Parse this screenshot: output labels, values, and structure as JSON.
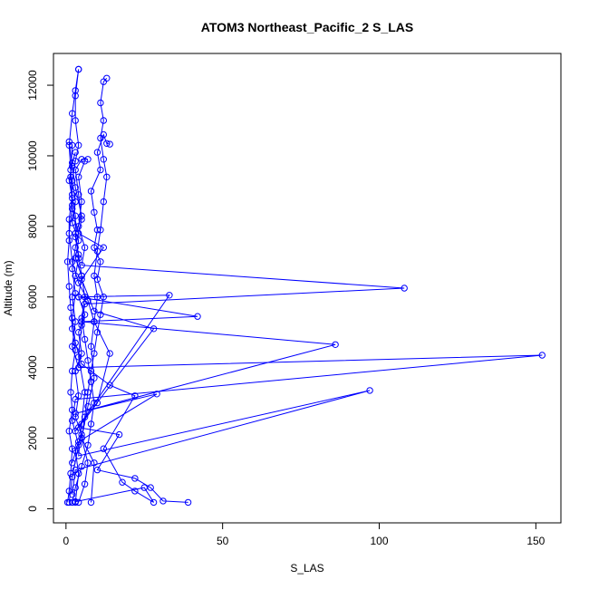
{
  "chart_data": {
    "type": "line",
    "title": "ATOM3 Northeast_Pacific_2 S_LAS",
    "xlabel": "S_LAS",
    "ylabel": "Altitude (m)",
    "xlim": [
      -4,
      158
    ],
    "ylim": [
      -400,
      12900
    ],
    "xticks": [
      0,
      50,
      100,
      150
    ],
    "yticks": [
      0,
      2000,
      4000,
      6000,
      8000,
      10000,
      12000
    ],
    "grid": false,
    "legend": "none",
    "color": "#0000ff",
    "series": [
      {
        "points": [
          [
            3,
            180
          ],
          [
            4,
            1000
          ],
          [
            3,
            1650
          ],
          [
            5,
            2100
          ],
          [
            3,
            2600
          ],
          [
            4,
            3200
          ],
          [
            3,
            3900
          ],
          [
            5,
            4400
          ],
          [
            4,
            5000
          ],
          [
            6,
            5500
          ],
          [
            4,
            6000
          ],
          [
            5,
            6600
          ],
          [
            3,
            7100
          ],
          [
            4,
            7600
          ],
          [
            2,
            8100
          ],
          [
            3,
            8700
          ],
          [
            2,
            9300
          ],
          [
            3,
            9850
          ],
          [
            4,
            10300
          ],
          [
            3,
            11000
          ],
          [
            3,
            11700
          ],
          [
            4,
            12450
          ]
        ]
      },
      {
        "points": [
          [
            0.5,
            180
          ],
          [
            1,
            500
          ],
          [
            1.5,
            1000
          ],
          [
            2,
            1700
          ],
          [
            1,
            2200
          ],
          [
            2,
            2800
          ],
          [
            1.5,
            3300
          ],
          [
            2,
            3900
          ],
          [
            3,
            4500
          ],
          [
            2,
            5100
          ],
          [
            1.5,
            5700
          ],
          [
            1,
            6300
          ],
          [
            0.5,
            7000
          ],
          [
            1,
            7600
          ],
          [
            1,
            8200
          ],
          [
            2,
            8900
          ],
          [
            1.5,
            9600
          ],
          [
            1,
            10300
          ],
          [
            2,
            11200
          ],
          [
            3,
            11850
          ],
          [
            4,
            12450
          ]
        ]
      },
      {
        "points": [
          [
            8,
            180
          ],
          [
            9,
            1300
          ],
          [
            5,
            2000
          ],
          [
            7,
            2900
          ],
          [
            9,
            3700
          ],
          [
            8,
            4600
          ],
          [
            9,
            5300
          ],
          [
            10,
            6000
          ],
          [
            9,
            6600
          ],
          [
            10,
            7300
          ],
          [
            11,
            7900
          ],
          [
            12,
            8700
          ],
          [
            13,
            9400
          ],
          [
            12,
            9900
          ],
          [
            11,
            10500
          ],
          [
            12,
            11000
          ],
          [
            11,
            11500
          ],
          [
            12,
            12100
          ],
          [
            13,
            12200
          ]
        ]
      },
      {
        "points": [
          [
            39,
            180
          ],
          [
            31,
            220
          ],
          [
            27,
            600
          ],
          [
            22,
            860
          ],
          [
            10,
            1100
          ],
          [
            17,
            2100
          ],
          [
            4,
            2300
          ],
          [
            10,
            3000
          ],
          [
            14,
            4400
          ],
          [
            9,
            5300
          ],
          [
            7,
            5900
          ],
          [
            4,
            6400
          ],
          [
            2,
            7000
          ],
          [
            1,
            7800
          ],
          [
            2,
            8600
          ],
          [
            1.5,
            9400
          ],
          [
            2,
            10300
          ]
        ]
      },
      {
        "points": [
          [
            3,
            200
          ],
          [
            25,
            600
          ],
          [
            28,
            180
          ],
          [
            22,
            500
          ],
          [
            18,
            750
          ],
          [
            12,
            1700
          ],
          [
            22,
            3200
          ],
          [
            14,
            3500
          ],
          [
            5,
            4100
          ],
          [
            3,
            4700
          ],
          [
            2,
            5400
          ],
          [
            3,
            6100
          ],
          [
            2,
            6800
          ],
          [
            3,
            7400
          ],
          [
            5,
            8200
          ],
          [
            4,
            8900
          ],
          [
            3,
            9600
          ],
          [
            5,
            9900
          ],
          [
            7,
            9900
          ]
        ]
      },
      {
        "points": [
          [
            1,
            180
          ],
          [
            2,
            900
          ],
          [
            4,
            1800
          ],
          [
            2,
            2500
          ],
          [
            3,
            3100
          ],
          [
            152,
            4350
          ],
          [
            4,
            4000
          ],
          [
            2,
            4600
          ],
          [
            3,
            5300
          ],
          [
            2,
            6000
          ],
          [
            3,
            6600
          ],
          [
            4,
            7100
          ],
          [
            3,
            7800
          ],
          [
            5,
            8300
          ],
          [
            3,
            9100
          ],
          [
            2,
            9700
          ],
          [
            1,
            10400
          ]
        ]
      },
      {
        "points": [
          [
            2,
            400
          ],
          [
            3,
            1100
          ],
          [
            97,
            3350
          ],
          [
            4,
            1500
          ],
          [
            5,
            2400
          ],
          [
            6,
            3300
          ],
          [
            4,
            4300
          ],
          [
            5,
            5200
          ],
          [
            6,
            5800
          ],
          [
            108,
            6250
          ],
          [
            5,
            6900
          ],
          [
            6,
            7400
          ],
          [
            4,
            8000
          ],
          [
            5,
            8700
          ],
          [
            4,
            9400
          ],
          [
            6,
            9850
          ]
        ]
      },
      {
        "points": [
          [
            2,
            1300
          ],
          [
            4,
            1900
          ],
          [
            29,
            3250
          ],
          [
            3,
            2700
          ],
          [
            86,
            4650
          ],
          [
            5,
            5300
          ],
          [
            42,
            5450
          ],
          [
            4,
            6000
          ],
          [
            33,
            6050
          ],
          [
            3,
            2200
          ],
          [
            28,
            5100
          ],
          [
            9,
            5600
          ],
          [
            5,
            6500
          ],
          [
            12,
            7400
          ],
          [
            4,
            7800
          ],
          [
            2,
            8500
          ]
        ]
      },
      {
        "points": [
          [
            4,
            180
          ],
          [
            6,
            700
          ],
          [
            7,
            1300
          ],
          [
            5,
            2000
          ],
          [
            6,
            2600
          ],
          [
            7,
            3300
          ],
          [
            8,
            3900
          ],
          [
            9,
            4400
          ],
          [
            10,
            5000
          ],
          [
            11,
            5500
          ],
          [
            12,
            6000
          ],
          [
            10,
            6500
          ],
          [
            11,
            7000
          ],
          [
            9,
            7400
          ],
          [
            10,
            7900
          ],
          [
            9,
            8400
          ],
          [
            8,
            9000
          ],
          [
            11,
            9600
          ],
          [
            10,
            10100
          ],
          [
            12,
            10600
          ],
          [
            13,
            10350
          ],
          [
            14,
            10330
          ]
        ]
      },
      {
        "points": [
          [
            2,
            180
          ],
          [
            3,
            600
          ],
          [
            5,
            1200
          ],
          [
            7,
            1800
          ],
          [
            8,
            2400
          ],
          [
            9,
            3000
          ],
          [
            8,
            3600
          ],
          [
            7,
            4200
          ],
          [
            6,
            4800
          ],
          [
            5,
            5400
          ],
          [
            6,
            6000
          ],
          [
            5,
            6600
          ],
          [
            4,
            7200
          ],
          [
            3,
            7700
          ],
          [
            3,
            8300
          ],
          [
            2,
            8800
          ],
          [
            1,
            9300
          ],
          [
            2,
            9800
          ],
          [
            3,
            10100
          ]
        ]
      }
    ]
  }
}
